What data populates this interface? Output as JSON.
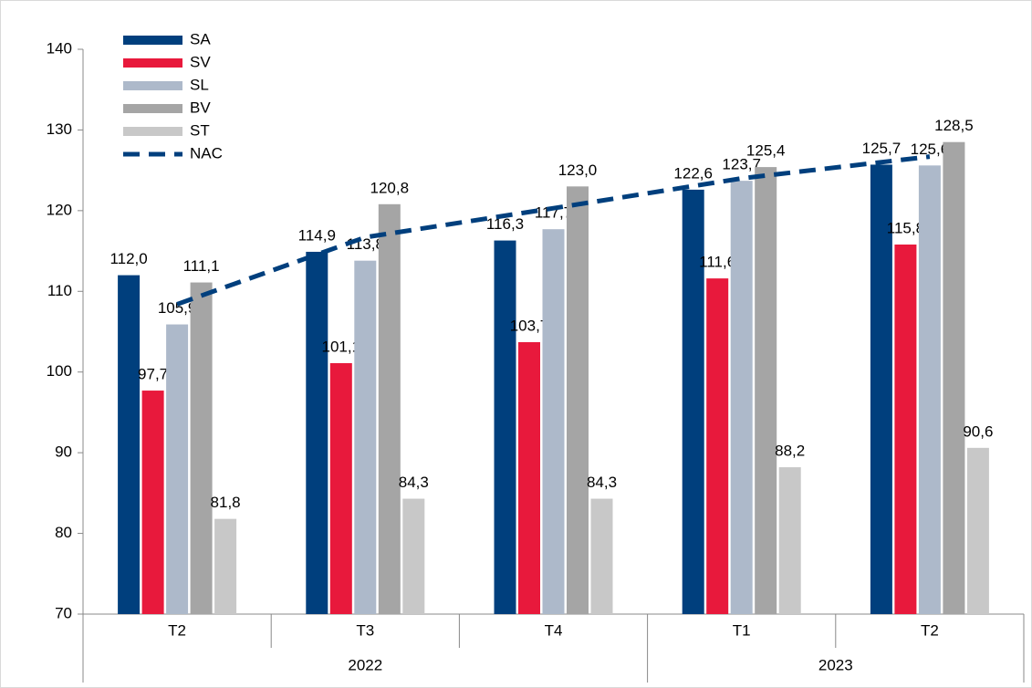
{
  "chart_data": {
    "type": "bar",
    "categories": [
      "T2",
      "T3",
      "T4",
      "T1",
      "T2"
    ],
    "category_groups": [
      "2022",
      null,
      null,
      "2023",
      null
    ],
    "ylim": [
      70,
      140
    ],
    "yticks": [
      70,
      80,
      90,
      100,
      110,
      120,
      130,
      140
    ],
    "series": [
      {
        "name": "SA",
        "color": "#003f7d",
        "values": [
          112.0,
          114.9,
          116.3,
          122.6,
          125.7
        ],
        "value_labels": [
          "112,0",
          "114,9",
          "116,3",
          "122,6",
          "125,7"
        ]
      },
      {
        "name": "SV",
        "color": "#e8193c",
        "values": [
          97.7,
          101.1,
          103.7,
          111.6,
          115.8
        ],
        "value_labels": [
          "97,7",
          "101,1",
          "103,7",
          "111,6",
          "115,8"
        ]
      },
      {
        "name": "SL",
        "color": "#adb9ca",
        "values": [
          105.9,
          113.8,
          117.7,
          123.7,
          125.6
        ],
        "value_labels": [
          "105,9",
          "113,8",
          "117,7",
          "123,7",
          "125,6"
        ]
      },
      {
        "name": "BV",
        "color": "#a5a5a5",
        "values": [
          111.1,
          120.8,
          123.0,
          125.4,
          128.5
        ],
        "value_labels": [
          "111,1",
          "120,8",
          "123,0",
          "125,4",
          "128,5"
        ]
      },
      {
        "name": "ST",
        "color": "#c8c8c8",
        "values": [
          81.8,
          84.3,
          84.3,
          88.2,
          90.6
        ],
        "value_labels": [
          "81,8",
          "84,3",
          "84,3",
          "88,2",
          "90,6"
        ]
      },
      {
        "name": "NAC",
        "color": "#003f7d",
        "type": "line",
        "dashed": true,
        "values": [
          108.4,
          116.7,
          120.3,
          124.0,
          126.7
        ]
      }
    ]
  }
}
